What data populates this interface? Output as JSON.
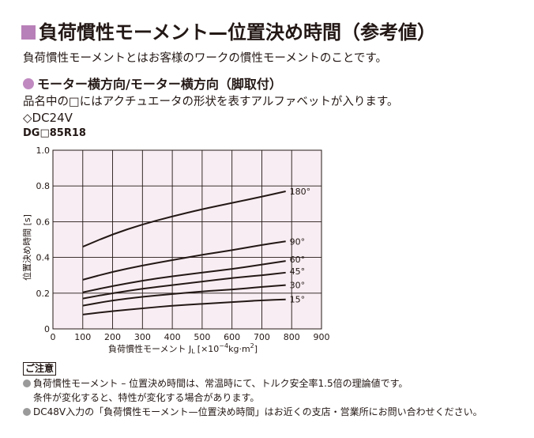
{
  "header": {
    "title": "負荷慣性モーメント—位置決め時間（参考値）",
    "intro": "負荷慣性モーメントとはお客様のワークの慣性モーメントのことです。",
    "subtitle": "モーター横方向/モーター横方向（脚取付）",
    "note": "品名中の□にはアクチュエータの形状を表すアルファベットが入ります。",
    "voltage": "◇DC24V",
    "model": "DG□85R18"
  },
  "colors": {
    "accent_square": "#b880b8",
    "accent_dot": "#c08ac0",
    "plot_background": "#f8edf2",
    "curve": "#231815"
  },
  "chart_data": {
    "type": "line",
    "title": "",
    "xlabel": "負荷慣性モーメント J",
    "xlabel_sub": "L",
    "xunit": "[×10",
    "xunit_exp": "−4",
    "xunit_end": "kg·m",
    "xunit_sq": "2",
    "xunit_close": "]",
    "ylabel": "位置決め時間 [s]",
    "xlim": [
      0,
      900
    ],
    "ylim": [
      0,
      1.0
    ],
    "x_ticks": [
      0,
      100,
      200,
      300,
      400,
      500,
      600,
      700,
      800,
      900
    ],
    "y_ticks": [
      0,
      0.2,
      0.4,
      0.6,
      0.8,
      1.0
    ],
    "y_tick_labels": [
      "0",
      "0.2",
      "0.4",
      "0.6",
      "0.8",
      "1.0"
    ],
    "grid": true,
    "series": [
      {
        "name": "180°",
        "x": [
          100,
          200,
          300,
          400,
          500,
          600,
          700,
          780
        ],
        "y": [
          0.46,
          0.53,
          0.585,
          0.63,
          0.67,
          0.705,
          0.74,
          0.77
        ]
      },
      {
        "name": "90°",
        "x": [
          100,
          200,
          300,
          400,
          500,
          600,
          700,
          780
        ],
        "y": [
          0.275,
          0.32,
          0.355,
          0.385,
          0.415,
          0.44,
          0.47,
          0.49
        ]
      },
      {
        "name": "60°",
        "x": [
          100,
          200,
          300,
          400,
          500,
          600,
          700,
          780
        ],
        "y": [
          0.205,
          0.24,
          0.27,
          0.295,
          0.315,
          0.335,
          0.36,
          0.38
        ]
      },
      {
        "name": "45°",
        "x": [
          100,
          200,
          300,
          400,
          500,
          600,
          700,
          780
        ],
        "y": [
          0.17,
          0.2,
          0.225,
          0.245,
          0.265,
          0.285,
          0.3,
          0.315
        ]
      },
      {
        "name": "30°",
        "x": [
          100,
          200,
          300,
          400,
          500,
          600,
          700,
          780
        ],
        "y": [
          0.13,
          0.16,
          0.18,
          0.195,
          0.21,
          0.22,
          0.235,
          0.245
        ]
      },
      {
        "name": "15°",
        "x": [
          100,
          200,
          300,
          400,
          500,
          600,
          700,
          780
        ],
        "y": [
          0.08,
          0.1,
          0.115,
          0.13,
          0.14,
          0.15,
          0.16,
          0.165
        ]
      }
    ]
  },
  "footnotes": {
    "caution_label": "ご注意",
    "line1": "負荷慣性モーメント – 位置決め時間は、常温時にて、トルク安全率1.5倍の理論値です。",
    "line1_cont": "条件が変化すると、特性が変化する場合があります。",
    "line2": "DC48V入力の「負荷慣性モーメント—位置決め時間」はお近くの支店・営業所にお問い合わせください。"
  }
}
